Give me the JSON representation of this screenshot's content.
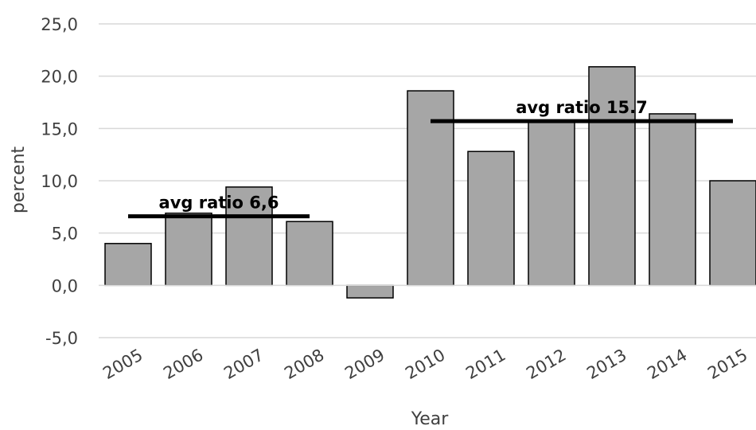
{
  "chart_data": {
    "type": "bar",
    "title": "",
    "xlabel": "Year",
    "ylabel": "percent",
    "categories": [
      "2005",
      "2006",
      "2007",
      "2008",
      "2009",
      "2010",
      "2011",
      "2012",
      "2013",
      "2014",
      "2015"
    ],
    "values": [
      4.0,
      6.9,
      9.4,
      6.1,
      -1.2,
      18.6,
      12.8,
      15.7,
      20.9,
      16.4,
      10.0
    ],
    "ylim": [
      -5,
      25
    ],
    "yticks": [
      -5,
      0,
      5,
      10,
      15,
      20,
      25
    ],
    "ytick_labels": [
      "-5,0",
      "0,0",
      "5,0",
      "10,0",
      "15,0",
      "20,0",
      "25,0"
    ],
    "grid": true,
    "bar_color": "#a6a6a6",
    "bar_edge_color": "#000000",
    "grid_color": "#d9d9d9",
    "average_lines": [
      {
        "label": "avg ratio 6,6",
        "value": 6.6,
        "from": "2005",
        "to": "2008"
      },
      {
        "label": "avg ratio 15.7",
        "value": 15.7,
        "from": "2010",
        "to": "2015"
      }
    ]
  }
}
